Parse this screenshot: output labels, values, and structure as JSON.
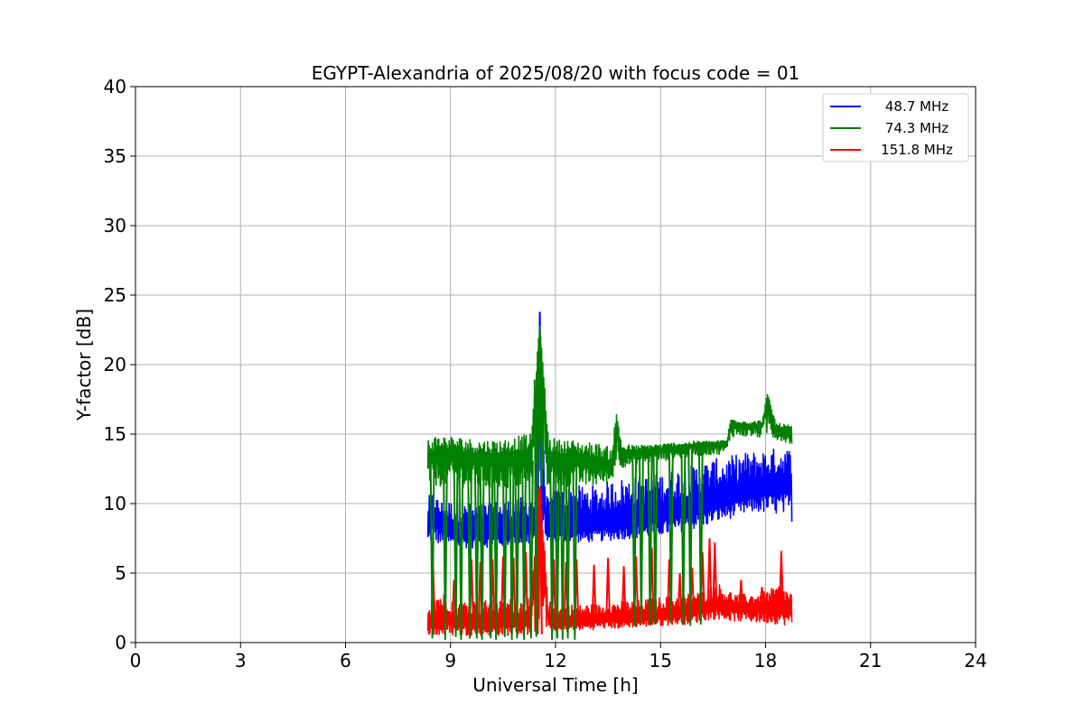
{
  "chart_data": {
    "type": "line",
    "title": "EGYPT-Alexandria of 2025/08/20 with focus code = 01",
    "xlabel": "Universal Time [h]",
    "ylabel": "Y-factor [dB]",
    "xlim": [
      0,
      24
    ],
    "ylim": [
      0,
      40
    ],
    "xticks": [
      "0",
      "3",
      "6",
      "9",
      "12",
      "15",
      "18",
      "21",
      "24"
    ],
    "yticks": [
      "0",
      "5",
      "10",
      "15",
      "20",
      "25",
      "30",
      "35",
      "40"
    ],
    "grid": true,
    "legend_position": "top-right",
    "series": [
      {
        "name": "48.7 MHz",
        "color": "#0000ff",
        "x": [
          8.35,
          8.5,
          8.7,
          9.0,
          9.3,
          9.6,
          9.9,
          10.2,
          10.5,
          10.8,
          11.1,
          11.4,
          11.55,
          11.7,
          12.0,
          12.3,
          12.6,
          12.9,
          13.2,
          13.5,
          13.8,
          14.1,
          14.4,
          14.7,
          15.0,
          15.3,
          15.6,
          15.9,
          16.2,
          16.5,
          16.8,
          17.1,
          17.4,
          17.7,
          18.0,
          18.3,
          18.6,
          18.75
        ],
        "y": [
          8.0,
          9.0,
          8.2,
          7.9,
          7.8,
          7.7,
          7.8,
          7.8,
          7.9,
          8.0,
          8.1,
          8.3,
          23.8,
          8.2,
          8.0,
          8.0,
          8.1,
          8.1,
          8.2,
          8.3,
          8.4,
          8.5,
          8.6,
          8.7,
          8.9,
          9.0,
          9.2,
          9.3,
          9.6,
          9.8,
          10.0,
          10.2,
          10.4,
          10.6,
          10.8,
          10.9,
          11.0,
          11.2
        ],
        "hi": [
          10.5,
          10.8,
          10.2,
          10.2,
          10.0,
          10.0,
          10.0,
          10.2,
          10.2,
          10.4,
          10.5,
          10.6,
          23.8,
          10.6,
          11.0,
          11.2,
          11.3,
          11.3,
          11.3,
          11.6,
          11.8,
          11.9,
          12.0,
          12.0,
          12.2,
          12.4,
          12.6,
          12.8,
          13.0,
          13.2,
          13.3,
          13.5,
          13.7,
          13.8,
          13.9,
          14.0,
          14.1,
          13.8
        ],
        "lo": [
          7.0,
          7.2,
          7.0,
          6.9,
          6.8,
          6.8,
          6.8,
          6.9,
          6.9,
          7.0,
          7.0,
          7.1,
          7.2,
          7.1,
          7.1,
          7.2,
          7.2,
          7.2,
          7.3,
          7.3,
          7.4,
          7.5,
          7.5,
          7.6,
          7.7,
          7.8,
          8.0,
          8.1,
          8.3,
          8.6,
          8.8,
          9.0,
          9.2,
          9.4,
          9.3,
          9.2,
          9.0,
          8.7
        ]
      },
      {
        "name": "74.3 MHz",
        "color": "#008000",
        "x": [
          8.35,
          8.6,
          8.9,
          9.2,
          9.5,
          9.8,
          10.1,
          10.4,
          10.7,
          11.0,
          11.3,
          11.55,
          11.8,
          12.1,
          12.4,
          12.7,
          13.0,
          13.3,
          13.6,
          13.75,
          13.9,
          14.2,
          14.5,
          14.8,
          15.1,
          15.4,
          15.7,
          16.0,
          16.3,
          16.6,
          16.9,
          17.0,
          17.3,
          17.6,
          17.9,
          18.05,
          18.3,
          18.6,
          18.75
        ],
        "y": [
          13.0,
          13.2,
          13.3,
          13.2,
          13.1,
          13.0,
          13.0,
          13.0,
          13.1,
          13.1,
          13.1,
          22.8,
          13.1,
          13.0,
          13.0,
          12.9,
          12.8,
          12.7,
          12.5,
          15.2,
          13.3,
          13.5,
          13.6,
          13.7,
          13.8,
          13.9,
          14.0,
          14.1,
          14.2,
          14.2,
          14.3,
          15.7,
          15.6,
          15.5,
          15.6,
          17.2,
          15.3,
          15.1,
          15.0
        ],
        "hi": [
          14.8,
          14.9,
          14.9,
          14.8,
          14.7,
          14.6,
          14.6,
          14.6,
          14.7,
          14.9,
          15.0,
          23.0,
          14.8,
          14.6,
          14.6,
          14.5,
          14.4,
          14.3,
          14.0,
          16.8,
          14.3,
          14.2,
          14.2,
          14.3,
          14.3,
          14.4,
          14.4,
          14.5,
          14.5,
          14.5,
          14.6,
          16.1,
          16.0,
          15.9,
          16.0,
          18.0,
          15.8,
          15.7,
          15.6
        ],
        "lo": [
          11.3,
          11.2,
          11.3,
          11.2,
          11.1,
          11.0,
          11.0,
          11.0,
          11.1,
          11.1,
          11.2,
          11.3,
          11.2,
          11.2,
          11.2,
          11.2,
          11.2,
          11.3,
          11.5,
          12.8,
          12.6,
          12.8,
          12.9,
          13.0,
          13.1,
          13.2,
          13.3,
          13.4,
          13.5,
          13.5,
          13.6,
          14.8,
          14.8,
          14.8,
          14.7,
          14.8,
          14.6,
          14.4,
          14.2
        ],
        "spikes_x": [
          8.48,
          8.85,
          9.15,
          9.3,
          9.55,
          9.75,
          9.9,
          10.15,
          10.3,
          10.55,
          10.75,
          10.9,
          11.1,
          11.3,
          11.45,
          11.9,
          12.05,
          12.2,
          12.35,
          12.55,
          14.25,
          14.45,
          14.7,
          14.85,
          15.3,
          15.65,
          15.85,
          16.15
        ],
        "spikes_y": [
          0.3,
          0.2,
          0.4,
          0.2,
          0.3,
          0.3,
          0.2,
          0.3,
          0.2,
          0.4,
          0.2,
          0.3,
          0.2,
          0.3,
          0.4,
          0.2,
          0.3,
          0.2,
          0.3,
          0.2,
          1.2,
          1.4,
          1.2,
          1.3,
          1.4,
          1.3,
          1.2,
          1.3
        ]
      },
      {
        "name": "151.8 MHz",
        "color": "#ff0000",
        "x": [
          8.35,
          8.6,
          8.9,
          9.2,
          9.5,
          9.8,
          10.1,
          10.4,
          10.7,
          11.0,
          11.3,
          11.55,
          11.8,
          12.1,
          12.4,
          12.7,
          13.0,
          13.3,
          13.6,
          13.9,
          14.2,
          14.5,
          14.8,
          15.1,
          15.4,
          15.7,
          16.0,
          16.3,
          16.6,
          16.9,
          17.2,
          17.5,
          17.8,
          18.1,
          18.4,
          18.75
        ],
        "y": [
          1.2,
          1.4,
          1.5,
          1.3,
          1.4,
          1.3,
          1.4,
          1.3,
          1.4,
          1.3,
          1.4,
          10.0,
          1.4,
          1.3,
          1.4,
          1.4,
          1.5,
          1.6,
          1.6,
          1.6,
          1.7,
          1.7,
          1.8,
          1.9,
          1.9,
          2.0,
          2.2,
          2.4,
          2.5,
          2.4,
          2.3,
          2.3,
          2.3,
          2.3,
          2.3,
          2.2
        ],
        "hi": [
          2.5,
          3.8,
          3.5,
          3.0,
          3.2,
          3.0,
          3.1,
          3.0,
          3.2,
          3.1,
          3.3,
          11.4,
          3.0,
          2.6,
          2.8,
          2.7,
          2.8,
          2.7,
          2.9,
          3.0,
          3.0,
          3.1,
          3.2,
          3.3,
          3.4,
          3.5,
          3.6,
          3.8,
          4.4,
          3.8,
          3.5,
          3.5,
          3.6,
          3.8,
          4.2,
          3.6
        ],
        "lo": [
          0.6,
          0.4,
          0.5,
          0.5,
          0.5,
          0.5,
          0.5,
          0.5,
          0.5,
          0.5,
          0.6,
          0.6,
          0.7,
          0.7,
          0.8,
          0.9,
          0.9,
          1.0,
          1.0,
          1.0,
          1.1,
          1.1,
          1.2,
          1.2,
          1.3,
          1.3,
          1.4,
          1.6,
          1.7,
          1.6,
          1.5,
          1.5,
          1.4,
          1.4,
          1.3,
          1.2
        ],
        "spikes_x": [
          8.5,
          9.1,
          9.6,
          9.85,
          10.2,
          10.5,
          10.8,
          11.15,
          11.55,
          11.95,
          12.3,
          12.6,
          13.1,
          13.5,
          13.95,
          14.3,
          14.75,
          15.25,
          15.55,
          15.9,
          16.2,
          16.4,
          16.55,
          17.3,
          17.9,
          18.45
        ],
        "spikes_y": [
          5.6,
          4.5,
          6.0,
          5.8,
          6.0,
          6.2,
          6.1,
          6.5,
          11.2,
          6.0,
          5.8,
          6.0,
          5.6,
          6.1,
          5.5,
          6.2,
          6.8,
          6.0,
          5.0,
          5.4,
          6.5,
          7.5,
          7.2,
          4.5,
          4.0,
          6.6
        ]
      }
    ]
  }
}
